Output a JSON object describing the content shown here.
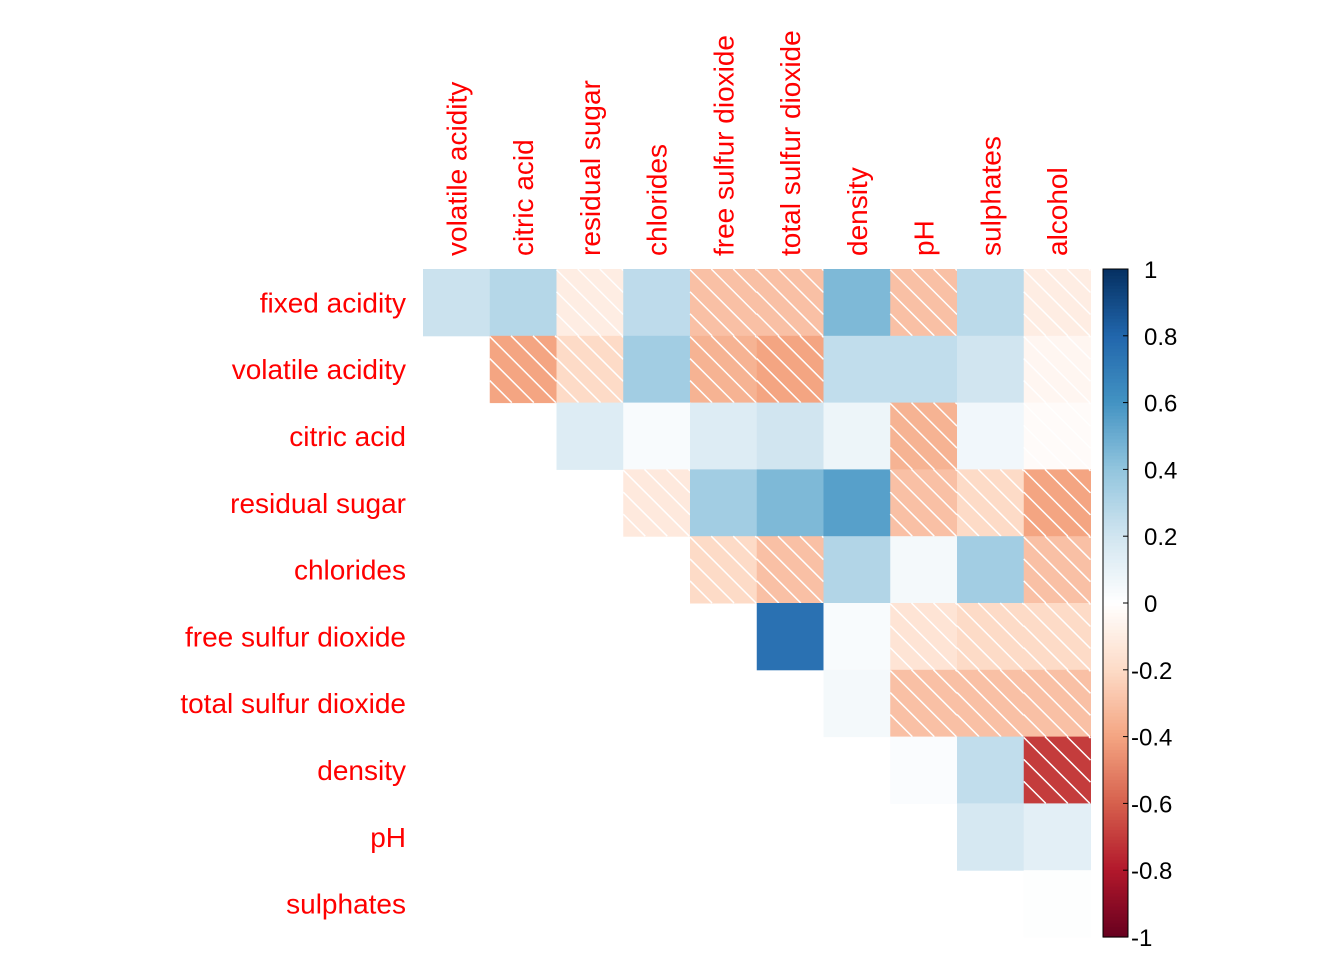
{
  "chart_data": {
    "type": "heatmap",
    "title": "",
    "subtype": "correlation matrix (upper triangle, off-diagonal)",
    "row_labels": [
      "fixed acidity",
      "volatile acidity",
      "citric acid",
      "residual sugar",
      "chlorides",
      "free sulfur dioxide",
      "total sulfur dioxide",
      "density",
      "pH",
      "sulphates"
    ],
    "col_labels": [
      "volatile acidity",
      "citric acid",
      "residual sugar",
      "chlorides",
      "free sulfur dioxide",
      "total sulfur dioxide",
      "density",
      "pH",
      "sulphates",
      "alcohol"
    ],
    "values": [
      [
        0.22,
        0.29,
        -0.1,
        0.26,
        -0.3,
        -0.3,
        0.45,
        -0.3,
        0.27,
        -0.1
      ],
      [
        null,
        -0.4,
        -0.2,
        0.35,
        -0.35,
        -0.4,
        0.25,
        0.25,
        0.2,
        -0.05
      ],
      [
        null,
        null,
        0.15,
        0.03,
        0.15,
        0.2,
        0.08,
        -0.35,
        0.06,
        -0.02
      ],
      [
        null,
        null,
        null,
        -0.12,
        0.35,
        0.45,
        0.55,
        -0.3,
        -0.2,
        -0.4
      ],
      [
        null,
        null,
        null,
        null,
        -0.2,
        -0.3,
        0.3,
        0.05,
        0.35,
        -0.3
      ],
      [
        null,
        null,
        null,
        null,
        null,
        0.75,
        0.03,
        -0.15,
        -0.2,
        -0.2
      ],
      [
        null,
        null,
        null,
        null,
        null,
        null,
        0.05,
        -0.3,
        -0.3,
        -0.3
      ],
      [
        null,
        null,
        null,
        null,
        null,
        null,
        null,
        0.02,
        0.25,
        -0.7
      ],
      [
        null,
        null,
        null,
        null,
        null,
        null,
        null,
        null,
        0.18,
        0.12
      ],
      [
        null,
        null,
        null,
        null,
        null,
        null,
        null,
        null,
        null,
        0.01
      ]
    ],
    "hatched_when": "negative",
    "colorbar": {
      "range": [
        -1,
        1
      ],
      "ticks": [
        "1",
        "0.8",
        "0.6",
        "0.4",
        "0.2",
        "0",
        "-0.2",
        "-0.4",
        "-0.6",
        "-0.8",
        "-1"
      ],
      "palette": [
        "#67001F",
        "#B2182B",
        "#D6604D",
        "#F4A582",
        "#FDDBC7",
        "#FFFFFF",
        "#D1E5F0",
        "#92C5DE",
        "#4393C3",
        "#2166AC",
        "#053061"
      ]
    },
    "label_color": "#ff0000"
  }
}
